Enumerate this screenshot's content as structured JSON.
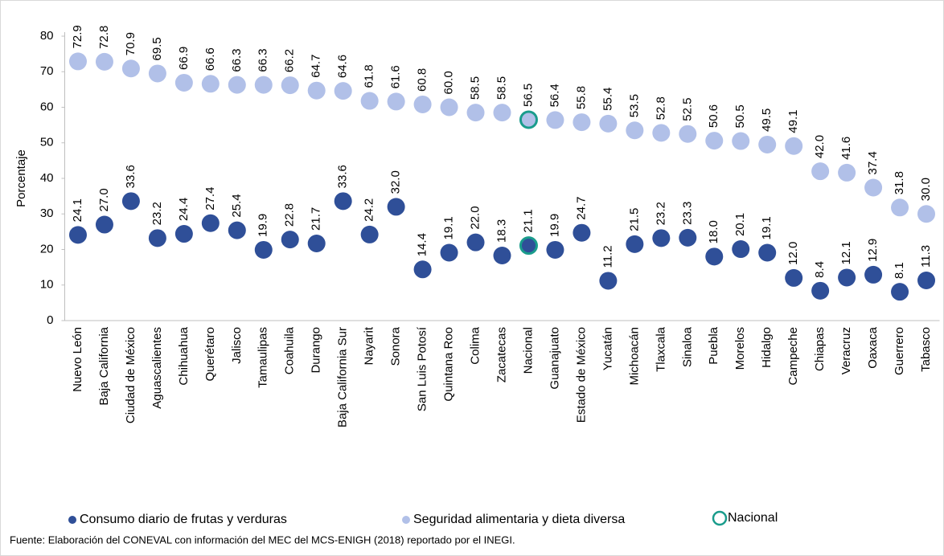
{
  "chart_data": {
    "type": "dot",
    "y_label": "Porcentaje",
    "categories": [
      "Nuevo León",
      "Baja California",
      "Ciudad de México",
      "Aguascalientes",
      "Chihuahua",
      "Querétaro",
      "Jalisco",
      "Tamaulipas",
      "Coahuila",
      "Durango",
      "Baja California Sur",
      "Nayarit",
      "Sonora",
      "San Luis Potosí",
      "Quintana Roo",
      "Colima",
      "Zacatecas",
      "Nacional",
      "Guanajuato",
      "Estado de México",
      "Yucatán",
      "Michoacán",
      "Tlaxcala",
      "Sinaloa",
      "Puebla",
      "Morelos",
      "Hidalgo",
      "Campeche",
      "Chiapas",
      "Veracruz",
      "Oaxaca",
      "Guerrero",
      "Tabasco"
    ],
    "series": [
      {
        "name": "Consumo diario de frutas y verduras",
        "color": "#2f4f98",
        "values": [
          24.1,
          27.0,
          33.6,
          23.2,
          24.4,
          27.4,
          25.4,
          19.9,
          22.8,
          21.7,
          33.6,
          24.2,
          32.0,
          14.4,
          19.1,
          22.0,
          18.3,
          21.1,
          19.9,
          24.7,
          11.2,
          21.5,
          23.2,
          23.3,
          18.0,
          20.1,
          19.1,
          12.0,
          8.4,
          12.1,
          12.9,
          8.1,
          11.3
        ],
        "value_labels": [
          "24.1",
          "27.0",
          "33.6",
          "23.2",
          "24.4",
          "27.4",
          "25.4",
          "19.9",
          "22.8",
          "21.7",
          "33.6",
          "24.2",
          "32.0",
          "14.4",
          "19.1",
          "22.0",
          "18.3",
          "21.1",
          "19.9",
          "24.7",
          "11.2",
          "21.5",
          "23.2",
          "23.3",
          "18.0",
          "20.1",
          "19.1",
          "12.0",
          "8.4",
          "12.1",
          "12.9",
          "8.1",
          "11.3"
        ]
      },
      {
        "name": "Seguridad alimentaria y dieta diversa",
        "color": "#b1c0e8",
        "values": [
          72.9,
          72.8,
          70.9,
          69.5,
          66.9,
          66.6,
          66.3,
          66.3,
          66.2,
          64.7,
          64.6,
          61.8,
          61.6,
          60.8,
          60.0,
          58.5,
          58.5,
          56.5,
          56.4,
          55.8,
          55.4,
          53.5,
          52.8,
          52.5,
          50.6,
          50.5,
          49.5,
          49.1,
          42.0,
          41.6,
          37.4,
          31.8,
          30.0
        ],
        "value_labels": [
          "72.9",
          "72.8",
          "70.9",
          "69.5",
          "66.9",
          "66.6",
          "66.3",
          "66.3",
          "66.2",
          "64.7",
          "64.6",
          "61.8",
          "61.6",
          "60.8",
          "60.0",
          "58.5",
          "58.5",
          "56.5",
          "56.4",
          "55.8",
          "55.4",
          "53.5",
          "52.8",
          "52.5",
          "50.6",
          "50.5",
          "49.5",
          "49.1",
          "42.0",
          "41.6",
          "37.4",
          "31.8",
          "30.0"
        ]
      }
    ],
    "highlight": {
      "name": "Nacional",
      "category": "Nacional",
      "color": "#1a9c8c"
    },
    "ylim": [
      0,
      80
    ],
    "yticks": [
      0,
      10,
      20,
      30,
      40,
      50,
      60,
      70,
      80
    ],
    "source": "Fuente: Elaboración del CONEVAL con información del MEC del MCS-ENIGH (2018) reportado por el INEGI."
  }
}
